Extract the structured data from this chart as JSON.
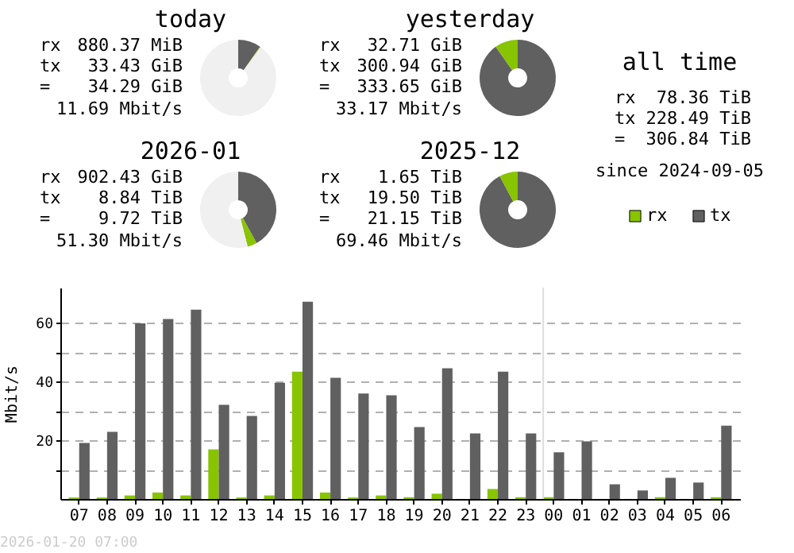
{
  "chart_data": [
    {
      "type": "donut",
      "title": "today",
      "categories": [
        null,
        null,
        null
      ],
      "values": [
        9.7,
        0.3,
        90
      ],
      "colors": [
        "#606060",
        "#88c400",
        "#f0f0f0"
      ],
      "annotations": [
        "rx",
        "880.37 MiB",
        "tx",
        "33.43 GiB",
        "=",
        "34.29 GiB",
        "11.69 Mbit/s"
      ]
    },
    {
      "type": "donut",
      "title": "2026-01",
      "categories": [
        null,
        null,
        null
      ],
      "values": [
        42,
        4,
        54
      ],
      "colors": [
        "#606060",
        "#88c400",
        "#f0f0f0"
      ],
      "annotations": [
        "rx",
        "902.43 GiB",
        "tx",
        "8.84 TiB",
        "=",
        "9.72 TiB",
        "51.30 Mbit/s"
      ]
    },
    {
      "type": "donut",
      "title": "yesterday",
      "categories": [
        null,
        null
      ],
      "values": [
        90.2,
        9.8
      ],
      "colors": [
        "#606060",
        "#88c400"
      ],
      "annotations": [
        "rx",
        "32.71 GiB",
        "tx",
        "300.94 GiB",
        "=",
        "333.65 GiB",
        "33.17 Mbit/s"
      ]
    },
    {
      "type": "donut",
      "title": "2025-12",
      "categories": [
        null,
        null
      ],
      "values": [
        92.2,
        7.8
      ],
      "colors": [
        "#606060",
        "#88c400"
      ],
      "annotations": [
        "rx",
        "1.65 TiB",
        "tx",
        "19.50 TiB",
        "=",
        "21.15 TiB",
        "69.46 Mbit/s"
      ]
    },
    {
      "type": "other",
      "title": "all time",
      "annotations": [
        "rx",
        "78.36 TiB",
        "tx",
        "228.49 TiB",
        "=",
        "306.84 TiB",
        "since 2024-09-05"
      ]
    },
    {
      "type": "bar",
      "ylabel": "Mbit/s",
      "categories": [
        "07",
        "08",
        "09",
        "10",
        "11",
        "12",
        "13",
        "14",
        "15",
        "16",
        "17",
        "18",
        "19",
        "20",
        "21",
        "22",
        "23",
        "00",
        "01",
        "02",
        "03",
        "04",
        "05",
        "06"
      ],
      "series": [
        {
          "name": "rx",
          "color": "#88c400",
          "values": [
            0.5,
            0.5,
            1.2,
            2.2,
            1.2,
            16.9,
            0.5,
            1.2,
            43.4,
            2.2,
            0.5,
            1.2,
            0.6,
            1.8,
            0,
            3.4,
            0.6,
            0.6,
            0,
            0,
            0,
            0.6,
            0,
            0.6
          ]
        },
        {
          "name": "tx",
          "color": "#606060",
          "values": [
            19.1,
            22.9,
            59.8,
            61.3,
            64.5,
            32.1,
            28.3,
            39.6,
            67.2,
            41.3,
            35.9,
            35.3,
            24.5,
            44.5,
            22.3,
            43.4,
            22.3,
            15.9,
            19.6,
            5.0,
            2.9,
            7.2,
            5.6,
            25.0
          ]
        }
      ],
      "ylim": [
        0,
        72
      ],
      "yticks": [
        {
          "value": 10,
          "label": null
        },
        20,
        {
          "value": 30,
          "label": null
        },
        40,
        {
          "value": 50,
          "label": null
        },
        60
      ],
      "grid": "y",
      "legend": "top right",
      "ref_lines": [
        {
          "axis": "x",
          "value": "00",
          "color": "#dddddd"
        }
      ],
      "annotations": [
        "2026-01-20 07:00"
      ]
    }
  ]
}
